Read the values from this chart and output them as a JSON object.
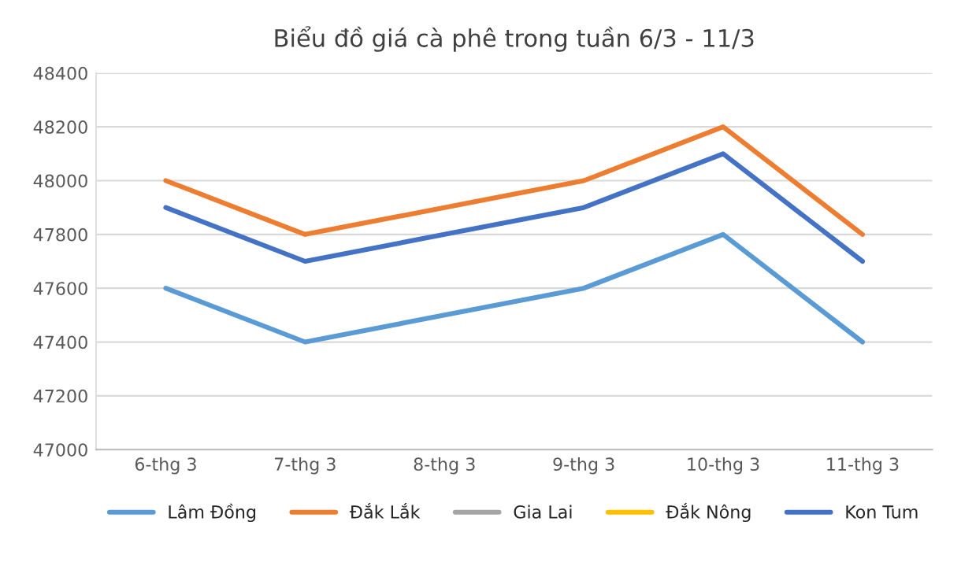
{
  "chart_data": {
    "type": "line",
    "title": "Biểu đồ giá cà phê trong tuần 6/3 - 11/3",
    "categories": [
      "6-thg 3",
      "7-thg 3",
      "8-thg 3",
      "9-thg 3",
      "10-thg 3",
      "11-thg 3"
    ],
    "series": [
      {
        "name": "Lâm Đồng",
        "color": "#5b9bd5",
        "values": [
          47600,
          47400,
          47500,
          47600,
          47800,
          47400
        ]
      },
      {
        "name": "Đắk Lắk",
        "color": "#ed7d31",
        "values": [
          48000,
          47800,
          47900,
          48000,
          48200,
          47800
        ]
      },
      {
        "name": "Gia Lai",
        "color": "#a5a5a5",
        "values": [
          null,
          null,
          null,
          null,
          null,
          null
        ]
      },
      {
        "name": "Đắk Nông",
        "color": "#ffc000",
        "values": [
          null,
          null,
          null,
          null,
          null,
          null
        ]
      },
      {
        "name": "Kon Tum",
        "color": "#4472c4",
        "values": [
          47900,
          47700,
          47800,
          47900,
          48100,
          47700
        ]
      }
    ],
    "ylim": [
      47000,
      48400
    ],
    "yticks": [
      47000,
      47200,
      47400,
      47600,
      47800,
      48000,
      48200,
      48400
    ],
    "grid": "y",
    "legend": "bottom",
    "marker": "none",
    "line_style": "solid"
  }
}
